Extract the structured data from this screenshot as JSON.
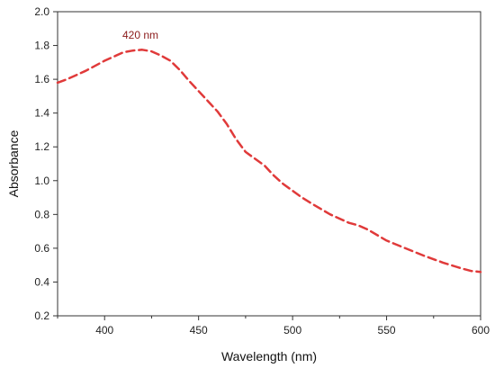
{
  "chart_data": {
    "type": "line",
    "title": "",
    "xlabel": "Wavelength (nm)",
    "ylabel": "Absorbance",
    "xlim": [
      375,
      600
    ],
    "ylim": [
      0.2,
      2.0
    ],
    "xticks": [
      "400",
      "450",
      "500",
      "550",
      "600"
    ],
    "yticks": [
      "0.2",
      "0.4",
      "0.6",
      "0.8",
      "1.0",
      "1.2",
      "1.4",
      "1.6",
      "1.8",
      "2.0"
    ],
    "grid": false,
    "line_color": "#e03a3a",
    "line_style": "dashed",
    "annotation": {
      "text": "420 nm",
      "x": 420,
      "y": 1.85,
      "color": "#8b1a1a"
    },
    "series": [
      {
        "x": [
          375,
          380,
          390,
          400,
          410,
          415,
          420,
          425,
          430,
          435,
          440,
          445,
          450,
          455,
          460,
          465,
          470,
          475,
          480,
          485,
          490,
          495,
          500,
          505,
          510,
          520,
          530,
          535,
          540,
          550,
          560,
          570,
          580,
          590,
          595,
          600
        ],
        "y": [
          1.58,
          1.6,
          1.65,
          1.71,
          1.76,
          1.77,
          1.775,
          1.765,
          1.74,
          1.71,
          1.655,
          1.59,
          1.53,
          1.47,
          1.41,
          1.335,
          1.245,
          1.17,
          1.13,
          1.09,
          1.03,
          0.98,
          0.94,
          0.9,
          0.865,
          0.8,
          0.75,
          0.735,
          0.71,
          0.645,
          0.6,
          0.555,
          0.515,
          0.48,
          0.465,
          0.46
        ]
      }
    ]
  }
}
